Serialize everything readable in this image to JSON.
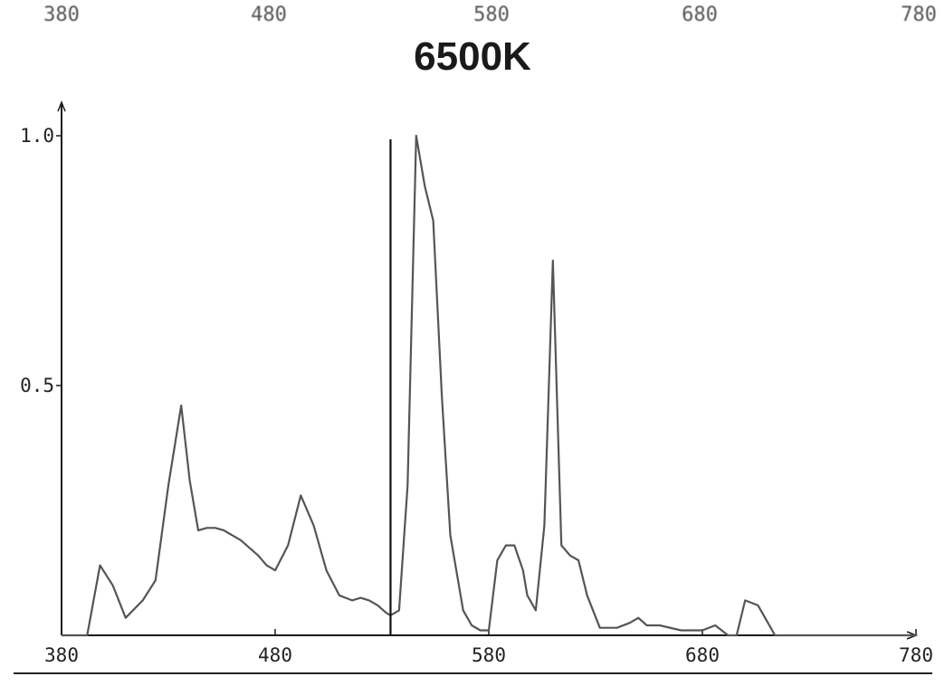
{
  "top_axis": {
    "labels": [
      "380",
      "480",
      "580",
      "680",
      "780"
    ]
  },
  "chart_data": {
    "type": "line",
    "title": "6500K",
    "xlim": [
      380,
      780
    ],
    "ylim": [
      0,
      1.0
    ],
    "x_ticks": [
      "380",
      "480",
      "580",
      "680",
      "780"
    ],
    "y_ticks": [
      {
        "value": 1.0,
        "label": "1.0"
      },
      {
        "value": 0.5,
        "label": "0.5"
      }
    ],
    "grid": false,
    "series": [
      {
        "x": [
          380,
          386,
          392,
          398,
          404,
          410,
          418,
          424,
          430,
          436,
          440,
          444,
          448,
          452,
          456,
          460,
          464,
          468,
          472,
          476,
          480,
          486,
          492,
          498,
          504,
          510,
          516,
          520,
          524,
          528,
          532,
          534,
          536,
          538,
          542,
          546,
          550,
          554,
          558,
          562,
          568,
          572,
          576,
          580,
          584,
          588,
          592,
          596,
          598,
          602,
          606,
          610,
          614,
          618,
          622,
          626,
          632,
          640,
          646,
          650,
          654,
          660,
          670,
          676,
          680,
          686,
          692,
          696,
          700,
          706,
          710,
          714,
          720,
          730,
          740,
          750,
          760,
          770,
          780
        ],
        "y": [
          0.0,
          0.0,
          0.0,
          0.14,
          0.1,
          0.035,
          0.07,
          0.11,
          0.3,
          0.46,
          0.31,
          0.21,
          0.215,
          0.215,
          0.21,
          0.2,
          0.19,
          0.175,
          0.16,
          0.14,
          0.13,
          0.18,
          0.28,
          0.22,
          0.13,
          0.08,
          0.07,
          0.075,
          0.07,
          0.06,
          0.045,
          0.04,
          0.045,
          0.05,
          0.3,
          1.0,
          0.9,
          0.83,
          0.48,
          0.2,
          0.05,
          0.02,
          0.01,
          0.01,
          0.15,
          0.18,
          0.18,
          0.13,
          0.08,
          0.05,
          0.22,
          0.75,
          0.18,
          0.16,
          0.15,
          0.08,
          0.015,
          0.015,
          0.025,
          0.035,
          0.02,
          0.02,
          0.01,
          0.01,
          0.01,
          0.02,
          0.0,
          0.0,
          0.07,
          0.06,
          0.03,
          0.0,
          0.0,
          0.0,
          0.0,
          0.0,
          0.0,
          0.0,
          0.0
        ]
      }
    ],
    "markers": [
      {
        "x": 534,
        "y_from": 0.0,
        "y_to": 1.0
      }
    ],
    "colors": {
      "line": "#555555",
      "axis": "#1a1a1a",
      "marker": "#111111"
    }
  }
}
